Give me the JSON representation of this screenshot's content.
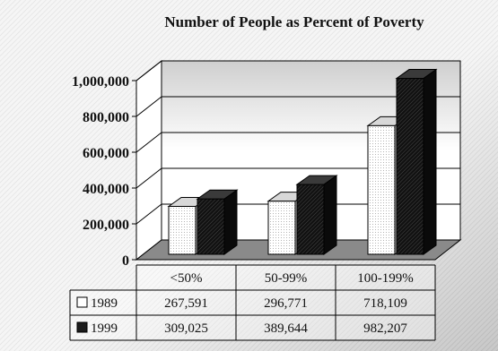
{
  "chart_data": {
    "type": "bar",
    "title": "Number of People as Percent of Poverty",
    "categories": [
      "<50%",
      "50-99%",
      "100-199%"
    ],
    "series": [
      {
        "name": "1989",
        "values": [
          267591,
          296771,
          718109
        ],
        "labels": [
          "267,591",
          "296,771",
          "718,109"
        ],
        "color": "#ffffff"
      },
      {
        "name": "1999",
        "values": [
          309025,
          389644,
          982207
        ],
        "labels": [
          "309,025",
          "389,644",
          "982,207"
        ],
        "color": "#1c1c1c"
      }
    ],
    "yticks": [
      0,
      200000,
      400000,
      600000,
      800000,
      1000000
    ],
    "ytick_labels": [
      "0",
      "200,000",
      "400,000",
      "600,000",
      "800,000",
      "1,000,000"
    ],
    "ylim": [
      0,
      1000000
    ],
    "grid": true,
    "legend": "data-table"
  }
}
